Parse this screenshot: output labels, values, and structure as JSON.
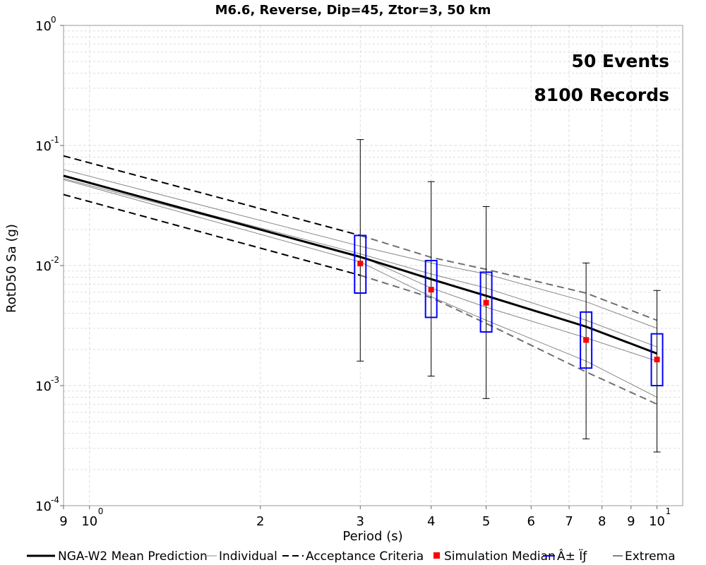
{
  "chart_data": {
    "type": "line",
    "title": "M6.6, Reverse, Dip=45, Ztor=3, 50 km",
    "xlabel": "Period (s)",
    "ylabel": "RotD50 Sa (g)",
    "xscale": "log",
    "yscale": "log",
    "xlim": [
      0.9,
      11.1
    ],
    "ylim": [
      0.0001,
      1
    ],
    "grid": true,
    "x_ticks": [
      {
        "value": 0.9,
        "label": "9",
        "exp": ""
      },
      {
        "value": 1,
        "label": "10",
        "exp": "0"
      },
      {
        "value": 2,
        "label": "2",
        "exp": ""
      },
      {
        "value": 3,
        "label": "3",
        "exp": ""
      },
      {
        "value": 4,
        "label": "4",
        "exp": ""
      },
      {
        "value": 5,
        "label": "5",
        "exp": ""
      },
      {
        "value": 6,
        "label": "6",
        "exp": ""
      },
      {
        "value": 7,
        "label": "7",
        "exp": ""
      },
      {
        "value": 8,
        "label": "8",
        "exp": ""
      },
      {
        "value": 9,
        "label": "9",
        "exp": ""
      },
      {
        "value": 10,
        "label": "10",
        "exp": "1"
      }
    ],
    "y_ticks": [
      {
        "value": 1,
        "label": "10",
        "exp": "0"
      },
      {
        "value": 0.1,
        "label": "10",
        "exp": "-1"
      },
      {
        "value": 0.01,
        "label": "10",
        "exp": "-2"
      },
      {
        "value": 0.001,
        "label": "10",
        "exp": "-3"
      },
      {
        "value": 0.0001,
        "label": "10",
        "exp": "-4"
      }
    ],
    "annotations": [
      "50 Events",
      "8100 Records"
    ],
    "mean_prediction": {
      "name": "NGA-W2 Mean Prediction",
      "color": "#000000",
      "x": [
        0.9,
        3,
        4,
        5,
        7.5,
        10
      ],
      "y": [
        0.056,
        0.0118,
        0.0077,
        0.0056,
        0.0031,
        0.00185
      ]
    },
    "individual": {
      "name": "Individual",
      "color": "#888888",
      "series": [
        {
          "x": [
            0.9,
            3,
            4,
            5,
            7.5,
            10
          ],
          "y": [
            0.063,
            0.0145,
            0.0105,
            0.0085,
            0.005,
            0.003
          ]
        },
        {
          "x": [
            0.9,
            3,
            4,
            5,
            7.5,
            10
          ],
          "y": [
            0.055,
            0.0125,
            0.0085,
            0.0065,
            0.0035,
            0.0021
          ]
        },
        {
          "x": [
            0.9,
            3,
            4,
            5,
            7.5,
            10
          ],
          "y": [
            0.053,
            0.012,
            0.0065,
            0.0045,
            0.0025,
            0.0016
          ]
        },
        {
          "x": [
            0.9,
            3,
            4,
            5,
            7.5,
            10
          ],
          "y": [
            0.052,
            0.0107,
            0.0055,
            0.0035,
            0.0016,
            0.0008
          ]
        }
      ]
    },
    "acceptance_criteria": {
      "name": "Acceptance Criteria",
      "color_black": "#000000",
      "color_grey": "#707070",
      "black_segments": [
        {
          "x": [
            0.9,
            3
          ],
          "y": [
            0.082,
            0.0178
          ]
        },
        {
          "x": [
            0.9,
            3
          ],
          "y": [
            0.039,
            0.0083
          ]
        }
      ],
      "grey_segments": [
        {
          "x": [
            3,
            4,
            5,
            7.5,
            10
          ],
          "y": [
            0.0178,
            0.0117,
            0.0093,
            0.0059,
            0.0035
          ]
        },
        {
          "x": [
            3,
            4,
            5,
            7.5,
            10
          ],
          "y": [
            0.0083,
            0.0054,
            0.0033,
            0.0013,
            0.0007
          ]
        }
      ]
    },
    "simulation_median": {
      "name": "Simulation Median",
      "color": "#ff0000",
      "x": [
        3,
        4,
        5,
        7.5,
        10
      ],
      "y": [
        0.0104,
        0.0063,
        0.0049,
        0.0024,
        0.00165
      ]
    },
    "sigma_boxes": {
      "name": "Â± Ïƒ",
      "color": "#0000ff",
      "x": [
        3,
        4,
        5,
        7.5,
        10
      ],
      "low": [
        0.0059,
        0.0037,
        0.0028,
        0.0014,
        0.001
      ],
      "high": [
        0.0178,
        0.011,
        0.0088,
        0.0041,
        0.0027
      ]
    },
    "extrema": {
      "name": "Extrema",
      "color": "#000000",
      "x": [
        3,
        4,
        5,
        7.5,
        10
      ],
      "low": [
        0.0016,
        0.0012,
        0.00078,
        0.00036,
        0.00028
      ],
      "high": [
        0.112,
        0.05,
        0.031,
        0.0105,
        0.0062
      ]
    }
  }
}
